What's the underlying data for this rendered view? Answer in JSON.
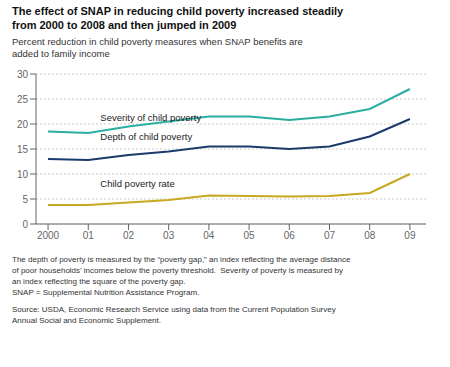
{
  "chart_data": {
    "type": "line",
    "title": "The effect of SNAP in reducing child poverty increased steadily\nfrom 2000 to 2008 and then jumped in 2009",
    "subtitle": "Percent reduction in child poverty measures when SNAP benefits are\nadded to family income",
    "x": [
      2000,
      2001,
      2002,
      2003,
      2004,
      2005,
      2006,
      2007,
      2008,
      2009
    ],
    "series": [
      {
        "name": "Severity of child poverty",
        "color": "#2aafa0",
        "values": [
          18.5,
          18.2,
          19.5,
          20.5,
          21.5,
          21.5,
          20.8,
          21.5,
          23.0,
          27.0
        ]
      },
      {
        "name": "Depth of child poverty",
        "color": "#1a3a6b",
        "values": [
          13.0,
          12.8,
          13.8,
          14.5,
          15.5,
          15.5,
          15.0,
          15.5,
          17.5,
          21.0
        ]
      },
      {
        "name": "Child poverty rate",
        "color": "#c8a820",
        "values": [
          3.8,
          3.8,
          4.3,
          4.8,
          5.7,
          5.6,
          5.5,
          5.6,
          6.2,
          10.0
        ]
      }
    ],
    "xlim": [
      1999.7,
      2009.4
    ],
    "xticks": [
      2000,
      {
        "value": 2001,
        "label": "01"
      },
      {
        "value": 2002,
        "label": "02"
      },
      {
        "value": 2003,
        "label": "03"
      },
      {
        "value": 2004,
        "label": "04"
      },
      {
        "value": 2005,
        "label": "05"
      },
      {
        "value": 2006,
        "label": "06"
      },
      {
        "value": 2007,
        "label": "07"
      },
      {
        "value": 2008,
        "label": "08"
      },
      {
        "value": 2009,
        "label": "09"
      }
    ],
    "ylim": [
      0,
      30
    ],
    "yticks": [
      0,
      5,
      10,
      15,
      20,
      25,
      30
    ],
    "grid": true,
    "annotations": [
      {
        "text": "Severity of child poverty",
        "x": 2001.3,
        "y": 20.0
      },
      {
        "text": "Depth of child poverty",
        "x": 2001.3,
        "y": 16.2
      },
      {
        "text": "Child poverty rate",
        "x": 2001.3,
        "y": 6.8
      }
    ],
    "footnotes": [
      "The depth of poverty is measured by the “poverty gap,” an index reflecting the average distance\nof poor households’ incomes below the poverty threshold.  Severity of poverty is measured by\nan index reflecting the square of the poverty gap.\nSNAP = Supplemental Nutrition Assistance Program.",
      "Source: USDA, Economic Research Service using data from the Current Population Survey\nAnnual Social and Economic Supplement."
    ]
  }
}
